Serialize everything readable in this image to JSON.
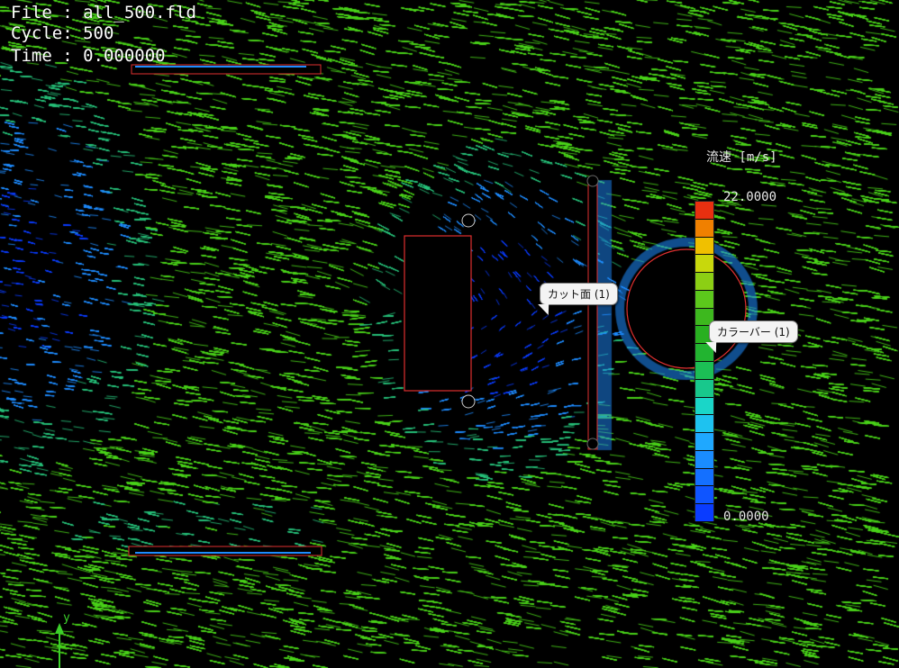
{
  "hud": {
    "file": "File : all_500.fld",
    "cycle": "Cycle: 500",
    "time": "Time : 0.000000"
  },
  "legend": {
    "title": "流速 [m/s]",
    "max_label": "22.0000",
    "min_label": "0.0000",
    "max_value": 22.0,
    "min_value": 0.0,
    "segment_count": 18,
    "colors": [
      "#0a3cff",
      "#0f55ff",
      "#1470ff",
      "#1a8cff",
      "#1fa8ff",
      "#1ec2f0",
      "#1ad6c8",
      "#18c88c",
      "#1cbf55",
      "#22b430",
      "#28b020",
      "#3db81e",
      "#5cc81c",
      "#8ccf14",
      "#c8d80c",
      "#f0c000",
      "#f08000",
      "#e83010"
    ]
  },
  "callouts": {
    "cut_plane": "カット面 (1)",
    "colorbar": "カラーバー (1)"
  },
  "axis": {
    "label": "y"
  },
  "field_colors": {
    "background": "#000000",
    "fast": "#4ad41a",
    "mid": "#27c27a",
    "slow": "#1e8cff",
    "slowest": "#0a3cff",
    "outline": "#e03030"
  }
}
